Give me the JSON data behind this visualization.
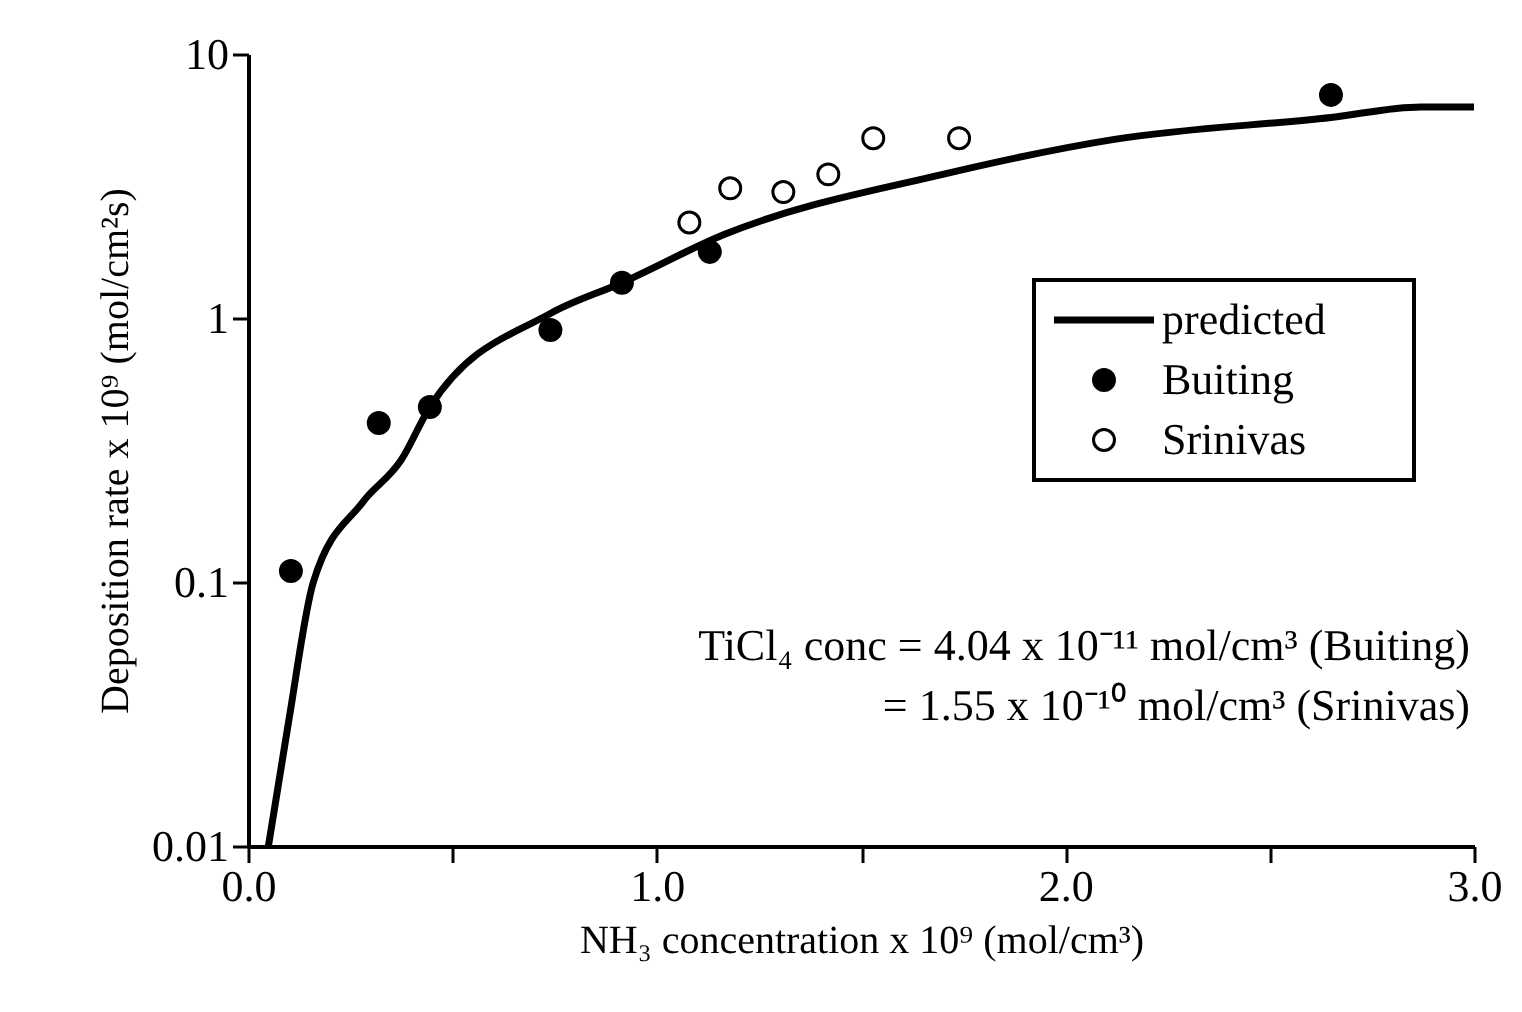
{
  "chart_data": {
    "type": "scatter",
    "xlabel": "NH₃ concentration x 10⁹ (mol/cm³)",
    "ylabel": "Deposition rate x 10⁹ (mol/cm²s)",
    "xlim": [
      0,
      3
    ],
    "ylim": [
      0.01,
      10
    ],
    "log": "y",
    "grid": false,
    "legend": "right",
    "xticks": [
      {
        "value": 0,
        "label": "0.0"
      },
      {
        "value": 0.5,
        "label": null
      },
      {
        "value": 1,
        "label": "1.0"
      },
      {
        "value": 1.5,
        "label": null
      },
      {
        "value": 2,
        "label": "2.0"
      },
      {
        "value": 2.5,
        "label": null
      },
      {
        "value": 3,
        "label": "3.0"
      }
    ],
    "yticks": [
      0.01,
      0.1,
      1,
      10
    ],
    "series": [
      {
        "name": "predicted",
        "type": "line",
        "color": "#000000",
        "marker": "none",
        "line_style": "solid",
        "x": [
          0.05,
          0.1,
          0.16,
          0.28,
          0.375,
          0.445,
          0.74,
          0.915,
          1.165,
          1.7,
          2.12,
          2.65,
          2.87,
          3.0
        ],
        "values": [
          0.01,
          0.03,
          0.1,
          0.2,
          0.29,
          0.46,
          1.04,
          1.36,
          2.07,
          3.5,
          4.75,
          5.75,
          6.3,
          6.3
        ]
      },
      {
        "name": "Buiting",
        "type": "scatter",
        "color": "#000000",
        "marker": "circle",
        "x": [
          0.105,
          0.32,
          0.445,
          0.74,
          0.915,
          1.13,
          2.65
        ],
        "values": [
          0.11,
          0.4,
          0.46,
          0.9,
          1.36,
          1.78,
          7.0
        ]
      },
      {
        "name": "Srinivas",
        "type": "scatter",
        "color": "#ffffff",
        "marker": "circle",
        "x": [
          1.08,
          1.18,
          1.31,
          1.42,
          1.53,
          1.74
        ],
        "values": [
          2.3,
          3.1,
          3.0,
          3.5,
          4.8,
          4.8
        ]
      }
    ],
    "annotations": [
      "TiCl₄ conc = 4.04 x 10⁻¹¹ mol/cm³ (Buiting)",
      "= 1.55 x 10⁻¹⁰ mol/cm³ (Srinivas)"
    ]
  }
}
